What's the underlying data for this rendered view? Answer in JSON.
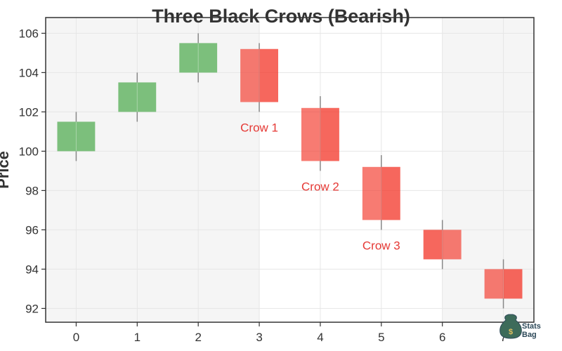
{
  "chart_data": {
    "type": "candlestick",
    "title": "Three Black Crows (Bearish)",
    "xlabel": "",
    "ylabel": "Price",
    "xlim": [
      -0.5,
      7.5
    ],
    "ylim": [
      91.3,
      106.8
    ],
    "x_ticks": [
      0,
      1,
      2,
      3,
      4,
      5,
      6,
      7
    ],
    "y_ticks": [
      92,
      94,
      96,
      98,
      100,
      102,
      104,
      106
    ],
    "grid": true,
    "candles": [
      {
        "x": 0,
        "open": 100.0,
        "high": 102.0,
        "low": 99.5,
        "close": 101.5
      },
      {
        "x": 1,
        "open": 102.0,
        "high": 104.0,
        "low": 101.5,
        "close": 103.5
      },
      {
        "x": 2,
        "open": 104.0,
        "high": 106.0,
        "low": 103.5,
        "close": 105.5
      },
      {
        "x": 3,
        "open": 105.2,
        "high": 105.5,
        "low": 102.0,
        "close": 102.5
      },
      {
        "x": 4,
        "open": 102.2,
        "high": 102.8,
        "low": 99.0,
        "close": 99.5
      },
      {
        "x": 5,
        "open": 99.2,
        "high": 99.8,
        "low": 96.0,
        "close": 96.5
      },
      {
        "x": 6,
        "open": 96.0,
        "high": 96.5,
        "low": 94.0,
        "close": 94.5
      },
      {
        "x": 7,
        "open": 94.0,
        "high": 94.5,
        "low": 92.0,
        "close": 92.5
      }
    ],
    "highlight_regions": [
      {
        "x_start": -0.5,
        "x_end": 3.0,
        "color": "#f5f5f5"
      },
      {
        "x_start": 6.0,
        "x_end": 7.5,
        "color": "#f5f5f5"
      }
    ],
    "annotations": [
      {
        "text": "Crow 1",
        "x": 3,
        "y": 101.0
      },
      {
        "text": "Crow 2",
        "x": 4,
        "y": 98.0
      },
      {
        "text": "Crow 3",
        "x": 5,
        "y": 95.0
      }
    ],
    "colors": {
      "bullish": "#7cbf7c",
      "bearish": "#f44336",
      "annotation": "#e53935",
      "wick": "#888888",
      "axis": "#333333",
      "grid": "#e6e6e6"
    }
  },
  "logo": {
    "line1": "Stats",
    "line2": "Bag"
  }
}
